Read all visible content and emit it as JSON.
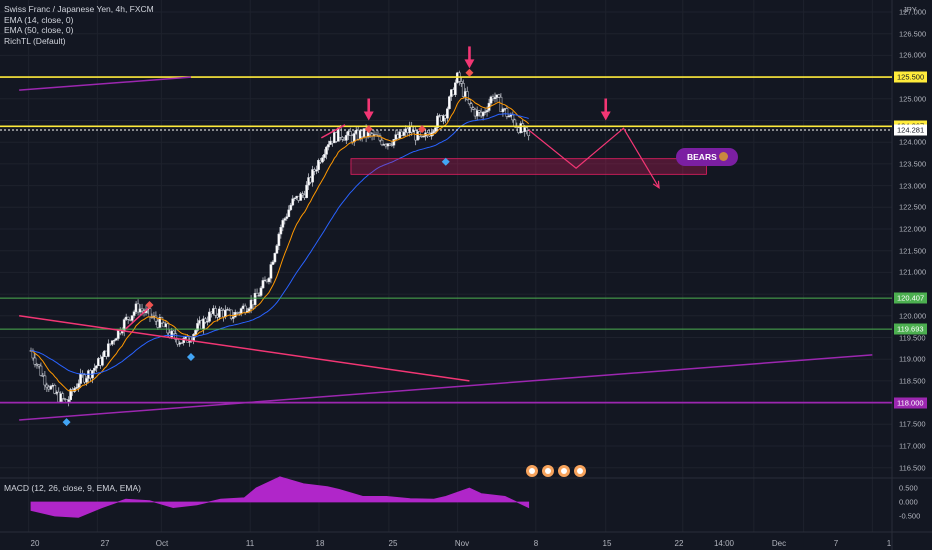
{
  "header": {
    "title": "Swiss Franc / Japanese Yen, 4h, FXCM",
    "indicators": [
      "EMA (14, close, 0)",
      "EMA (50, close, 0)",
      "RichTL (Default)"
    ],
    "macd_label": "MACD (12, 26, close, 9, EMA, EMA)",
    "currency": "JPY"
  },
  "annotation": {
    "label": "BEARS"
  },
  "price_tags": [
    {
      "label": "125.500",
      "value": 125.5,
      "bg": "#ffeb3b",
      "fg": "#131722"
    },
    {
      "label": "124.367",
      "value": 124.367,
      "bg": "#ffeb3b",
      "fg": "#131722"
    },
    {
      "label": "124.281",
      "value": 124.281,
      "bg": "#ffffff",
      "fg": "#131722"
    },
    {
      "label": "120.407",
      "value": 120.407,
      "bg": "#4caf50",
      "fg": "#ffffff"
    },
    {
      "label": "119.693",
      "value": 119.693,
      "bg": "#4caf50",
      "fg": "#ffffff"
    },
    {
      "label": "118.000",
      "value": 118.0,
      "bg": "#9c27b0",
      "fg": "#ffffff"
    }
  ],
  "macd_ticks": [
    {
      "label": "0.500",
      "value": 0.5
    },
    {
      "label": "0.000",
      "value": 0.0
    },
    {
      "label": "-0.500",
      "value": -0.5
    }
  ],
  "colors": {
    "background": "#131722",
    "up": "#ffffff",
    "down": "#131722",
    "ema14": "#ff9800",
    "ema50": "#2962ff",
    "yellow": "#ffeb3b",
    "green": "#4caf50",
    "purple": "#9c27b0",
    "pink": "#f23674",
    "macd": "#b026c9"
  },
  "chart_data": {
    "type": "candlestick",
    "symbol": "CHFJPY",
    "timeframe": "4h",
    "ylim": [
      116.5,
      127.0
    ],
    "y_ticks": [
      "127.000",
      "126.500",
      "126.000",
      "125.500",
      "125.000",
      "124.500",
      "124.000",
      "123.500",
      "123.000",
      "122.500",
      "122.000",
      "121.500",
      "121.000",
      "120.500",
      "120.000",
      "119.500",
      "119.000",
      "118.500",
      "118.000",
      "117.500",
      "117.000",
      "116.500"
    ],
    "x_ticks": [
      "20",
      "27",
      "Oct",
      "11",
      "18",
      "25",
      "Nov",
      "8",
      "15",
      "22",
      "14:00",
      "Dec",
      "7",
      "1"
    ],
    "path_points": [
      {
        "d": 0,
        "p": 119.2
      },
      {
        "d": 1,
        "p": 118.6
      },
      {
        "d": 2,
        "p": 118.2
      },
      {
        "d": 3,
        "p": 118.0
      },
      {
        "d": 4,
        "p": 118.5
      },
      {
        "d": 5,
        "p": 118.7
      },
      {
        "d": 6,
        "p": 119.0
      },
      {
        "d": 7,
        "p": 119.5
      },
      {
        "d": 8,
        "p": 119.9
      },
      {
        "d": 9,
        "p": 120.2
      },
      {
        "d": 10,
        "p": 120.0
      },
      {
        "d": 11,
        "p": 119.8
      },
      {
        "d": 12,
        "p": 119.5
      },
      {
        "d": 13,
        "p": 119.4
      },
      {
        "d": 14,
        "p": 119.7
      },
      {
        "d": 15,
        "p": 120.0
      },
      {
        "d": 16,
        "p": 120.1
      },
      {
        "d": 17,
        "p": 120.0
      },
      {
        "d": 18,
        "p": 120.2
      },
      {
        "d": 19,
        "p": 120.4
      },
      {
        "d": 20,
        "p": 120.9
      },
      {
        "d": 21,
        "p": 122.0
      },
      {
        "d": 22,
        "p": 122.6
      },
      {
        "d": 23,
        "p": 122.8
      },
      {
        "d": 24,
        "p": 123.4
      },
      {
        "d": 25,
        "p": 124.0
      },
      {
        "d": 26,
        "p": 124.2
      },
      {
        "d": 27,
        "p": 124.1
      },
      {
        "d": 28,
        "p": 124.2
      },
      {
        "d": 29,
        "p": 124.1
      },
      {
        "d": 30,
        "p": 124.0
      },
      {
        "d": 31,
        "p": 124.1
      },
      {
        "d": 32,
        "p": 124.3
      },
      {
        "d": 33,
        "p": 124.0
      },
      {
        "d": 34,
        "p": 124.4
      },
      {
        "d": 35,
        "p": 124.7
      },
      {
        "d": 36,
        "p": 125.5
      },
      {
        "d": 37,
        "p": 124.8
      },
      {
        "d": 38,
        "p": 124.6
      },
      {
        "d": 39,
        "p": 125.1
      },
      {
        "d": 40,
        "p": 124.7
      },
      {
        "d": 41,
        "p": 124.4
      },
      {
        "d": 42,
        "p": 124.1
      }
    ],
    "yellow_levels": [
      125.5,
      124.367
    ],
    "green_levels": [
      120.407,
      119.693
    ],
    "purple_levels": [
      118.0
    ],
    "support_zone": {
      "d_start": 27,
      "d_end": 57,
      "p_low": 123.26,
      "p_high": 123.62
    },
    "projection_path": [
      {
        "d": 42,
        "p": 124.281
      },
      {
        "d": 46,
        "p": 123.4
      },
      {
        "d": 50,
        "p": 124.32
      },
      {
        "d": 53,
        "p": 122.95
      }
    ],
    "trendlines": [
      {
        "color": "purple",
        "from": {
          "d": -1,
          "p": 125.2
        },
        "to": {
          "d": 13.5,
          "p": 125.5
        }
      },
      {
        "color": "pink",
        "from": {
          "d": -1,
          "p": 120.0
        },
        "to": {
          "d": 37,
          "p": 118.5
        }
      },
      {
        "color": "purple",
        "from": {
          "d": -1,
          "p": 117.6
        },
        "to": {
          "d": 71,
          "p": 119.1
        }
      },
      {
        "color": "pink",
        "from": {
          "d": 24.5,
          "p": 124.1
        },
        "to": {
          "d": 26.5,
          "p": 124.4
        }
      },
      {
        "color": "pink",
        "from": {
          "d": 8,
          "p": 119.7
        },
        "to": {
          "d": 10,
          "p": 120.2
        }
      }
    ],
    "arrows_down": [
      {
        "d": 28.5,
        "p": 124.5
      },
      {
        "d": 37,
        "p": 125.7
      },
      {
        "d": 48.5,
        "p": 124.5
      }
    ],
    "pivots_high": [
      {
        "d": 10,
        "p": 120.25
      },
      {
        "d": 28.5,
        "p": 124.3
      },
      {
        "d": 33,
        "p": 124.3
      },
      {
        "d": 37,
        "p": 125.6
      }
    ],
    "pivots_low": [
      {
        "d": 3,
        "p": 117.55
      },
      {
        "d": 13.5,
        "p": 119.05
      },
      {
        "d": 35,
        "p": 123.55
      }
    ],
    "macd": [
      {
        "d": 0,
        "v": -0.3
      },
      {
        "d": 2,
        "v": -0.5
      },
      {
        "d": 4,
        "v": -0.55
      },
      {
        "d": 6,
        "v": -0.2
      },
      {
        "d": 8,
        "v": 0.1
      },
      {
        "d": 10,
        "v": 0.05
      },
      {
        "d": 12,
        "v": -0.2
      },
      {
        "d": 14,
        "v": -0.1
      },
      {
        "d": 16,
        "v": 0.1
      },
      {
        "d": 18,
        "v": 0.15
      },
      {
        "d": 19,
        "v": 0.5
      },
      {
        "d": 21,
        "v": 0.9
      },
      {
        "d": 23,
        "v": 0.65
      },
      {
        "d": 25,
        "v": 0.55
      },
      {
        "d": 26,
        "v": 0.45
      },
      {
        "d": 28,
        "v": 0.2
      },
      {
        "d": 30,
        "v": 0.2
      },
      {
        "d": 32,
        "v": 0.12
      },
      {
        "d": 34,
        "v": 0.1
      },
      {
        "d": 35,
        "v": 0.2
      },
      {
        "d": 37,
        "v": 0.5
      },
      {
        "d": 38,
        "v": 0.3
      },
      {
        "d": 40,
        "v": 0.2
      },
      {
        "d": 42,
        "v": -0.2
      }
    ]
  }
}
